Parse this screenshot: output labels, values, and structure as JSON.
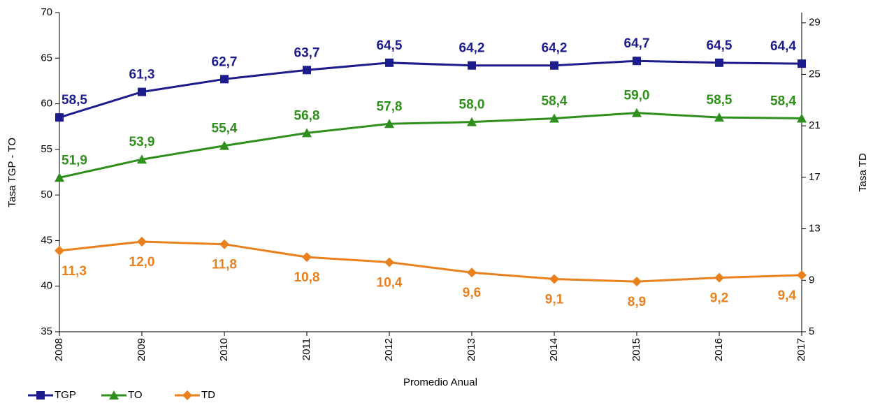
{
  "chart_data": {
    "type": "line",
    "x_label": "Promedio Anual",
    "y_label": "Tasa TGP - TO",
    "y2_label": "Tasa TD",
    "categories": [
      "2008",
      "2009",
      "2010",
      "2011",
      "2012",
      "2013",
      "2014",
      "2015",
      "2016",
      "2017"
    ],
    "ylim": [
      35,
      70
    ],
    "yticks": [
      35,
      40,
      45,
      50,
      55,
      60,
      65,
      70
    ],
    "y2lim": [
      5,
      29.8
    ],
    "y2ticks": [
      5,
      9,
      13,
      17,
      21,
      25,
      29
    ],
    "legend": "bottom-left",
    "series": [
      {
        "name": "TGP",
        "color": "#1c1c8c",
        "marker": "square",
        "label_position": "above",
        "values": [
          58.5,
          61.3,
          62.7,
          63.7,
          64.5,
          64.2,
          64.2,
          64.7,
          64.5,
          64.4
        ],
        "value_labels": [
          "58,5",
          "61,3",
          "62,7",
          "63,7",
          "64,5",
          "64,2",
          "64,2",
          "64,7",
          "64,5",
          "64,4"
        ]
      },
      {
        "name": "TO",
        "color": "#2f8f1c",
        "marker": "triangle",
        "label_position": "above",
        "values": [
          51.9,
          53.9,
          55.4,
          56.8,
          57.8,
          58.0,
          58.4,
          59.0,
          58.5,
          58.4
        ],
        "value_labels": [
          "51,9",
          "53,9",
          "55,4",
          "56,8",
          "57,8",
          "58,0",
          "58,4",
          "59,0",
          "58,5",
          "58,4"
        ]
      },
      {
        "name": "TD",
        "color": "#e8801e",
        "marker": "diamond",
        "axis": "y2",
        "label_position": "below",
        "values": [
          11.3,
          12.0,
          11.8,
          10.8,
          10.4,
          9.6,
          9.1,
          8.9,
          9.2,
          9.4
        ],
        "value_labels": [
          "11,3",
          "12,0",
          "11,8",
          "10,8",
          "10,4",
          "9,6",
          "9,1",
          "8,9",
          "9,2",
          "9,4"
        ]
      }
    ]
  }
}
